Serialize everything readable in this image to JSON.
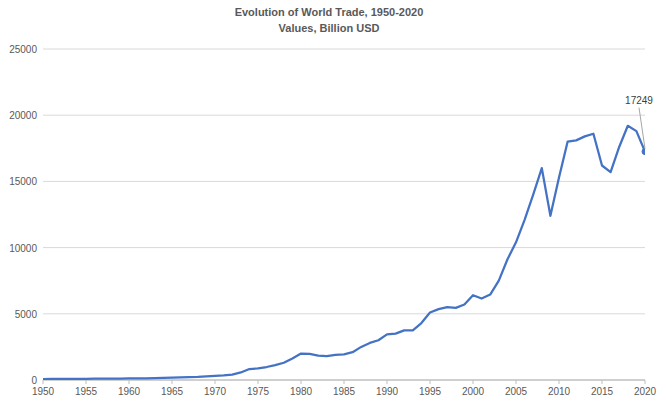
{
  "chart_data": {
    "type": "line",
    "title": "Evolution of World Trade, 1950-2020",
    "subtitle": "Values, Billion USD",
    "x": [
      1950,
      1951,
      1952,
      1953,
      1954,
      1955,
      1956,
      1957,
      1958,
      1959,
      1960,
      1961,
      1962,
      1963,
      1964,
      1965,
      1966,
      1967,
      1968,
      1969,
      1970,
      1971,
      1972,
      1973,
      1974,
      1975,
      1976,
      1977,
      1978,
      1979,
      1980,
      1981,
      1982,
      1983,
      1984,
      1985,
      1986,
      1987,
      1988,
      1989,
      1990,
      1991,
      1992,
      1993,
      1994,
      1995,
      1996,
      1997,
      1998,
      1999,
      2000,
      2001,
      2002,
      2003,
      2004,
      2005,
      2006,
      2007,
      2008,
      2009,
      2010,
      2011,
      2012,
      2013,
      2014,
      2015,
      2016,
      2017,
      2018,
      2019,
      2020
    ],
    "values": [
      60,
      80,
      80,
      80,
      80,
      90,
      100,
      110,
      110,
      110,
      120,
      125,
      130,
      140,
      160,
      180,
      200,
      210,
      230,
      270,
      310,
      350,
      410,
      570,
      830,
      870,
      980,
      1120,
      1300,
      1630,
      2000,
      1970,
      1840,
      1800,
      1900,
      1930,
      2100,
      2500,
      2800,
      3000,
      3450,
      3500,
      3750,
      3750,
      4300,
      5100,
      5350,
      5500,
      5450,
      5700,
      6400,
      6150,
      6450,
      7500,
      9100,
      10400,
      12100,
      14000,
      16000,
      12400,
      15300,
      18000,
      18100,
      18400,
      18600,
      16200,
      15700,
      17600,
      19200,
      18800,
      17249
    ],
    "color": "#4472c4",
    "xlim": [
      1950,
      2020
    ],
    "xticks": [
      1950,
      1955,
      1960,
      1965,
      1970,
      1975,
      1980,
      1985,
      1990,
      1995,
      2000,
      2005,
      2010,
      2015,
      2020
    ],
    "ylim": [
      0,
      25000
    ],
    "yticks": [
      0,
      5000,
      10000,
      15000,
      20000,
      25000
    ],
    "grid": true,
    "annotations": [
      {
        "x": 2020,
        "value": 17249
      }
    ]
  }
}
